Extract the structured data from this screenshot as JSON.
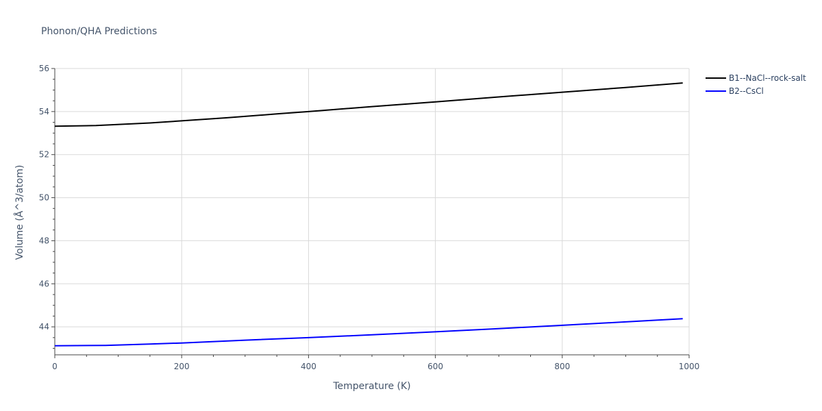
{
  "chart_data": {
    "type": "line",
    "title": "Phonon/QHA Predictions",
    "xlabel": "Temperature (K)",
    "ylabel": "Volume (Å^3/atom)",
    "xlim": [
      0,
      1000
    ],
    "ylim": [
      42.7,
      56
    ],
    "xticks": [
      0,
      200,
      400,
      600,
      800,
      1000
    ],
    "yticks": [
      44,
      46,
      48,
      50,
      52,
      54,
      56
    ],
    "grid": true,
    "legend": "top-right",
    "series": [
      {
        "name": "B1--NaCl--rock-salt",
        "color": "#000000",
        "x": [
          0,
          65,
          150,
          200,
          270,
          350,
          400,
          500,
          600,
          700,
          800,
          900,
          990
        ],
        "y": [
          53.32,
          53.35,
          53.47,
          53.57,
          53.71,
          53.89,
          54.0,
          54.23,
          54.45,
          54.68,
          54.9,
          55.12,
          55.33
        ]
      },
      {
        "name": "B2--CsCl",
        "color": "#0000ff",
        "x": [
          0,
          80,
          150,
          200,
          300,
          400,
          500,
          600,
          700,
          800,
          900,
          990
        ],
        "y": [
          43.12,
          43.14,
          43.2,
          43.25,
          43.38,
          43.5,
          43.63,
          43.77,
          43.92,
          44.07,
          44.23,
          44.38
        ]
      }
    ]
  }
}
